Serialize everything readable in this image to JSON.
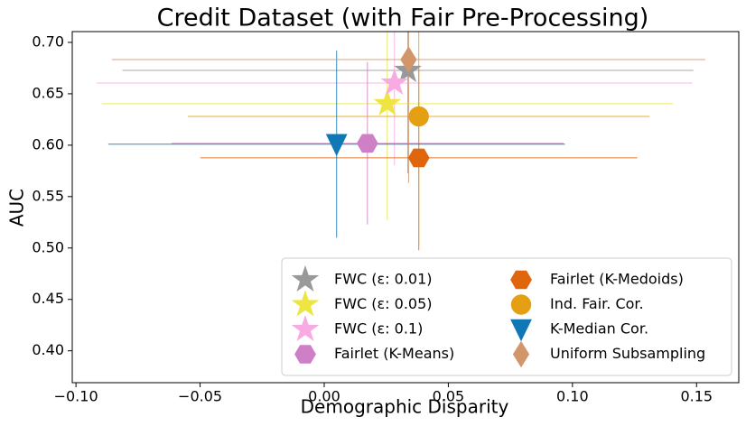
{
  "chart_data": {
    "type": "scatter",
    "title": "Credit Dataset (with Fair Pre-Processing)",
    "x_label": "Demographic Disparity",
    "y_label": "AUC",
    "xlim": [
      -0.1015,
      0.167
    ],
    "ylim": [
      0.369,
      0.7105
    ],
    "xticks": [
      {
        "value": -0.1,
        "label": "−0.10"
      },
      {
        "value": -0.05,
        "label": "−0.05"
      },
      {
        "value": 0,
        "label": "0.00"
      },
      {
        "value": 0.05,
        "label": "0.05"
      },
      {
        "value": 0.1,
        "label": "0.10"
      },
      {
        "value": 0.15,
        "label": "0.15"
      }
    ],
    "yticks": [
      {
        "value": 0.4,
        "label": "0.40"
      },
      0.45,
      {
        "value": 0.5,
        "label": "0.50"
      },
      0.55,
      {
        "value": 0.6,
        "label": "0.60"
      },
      0.65,
      {
        "value": 0.7,
        "label": "0.70"
      }
    ],
    "legend": "lower right",
    "series": [
      {
        "name": "FWC (ε: 0.01)",
        "color": "#999999",
        "marker": "star",
        "x": [
          0.0337
        ],
        "values": [
          0.6728
        ],
        "xerr": [
          0.115
        ],
        "yerr": [
          0.1
        ]
      },
      {
        "name": "FWC (ε: 0.05)",
        "color": "#eee543",
        "marker": "star",
        "x": [
          0.0254
        ],
        "values": [
          0.6404
        ],
        "xerr": [
          0.115
        ],
        "yerr": [
          0.113
        ]
      },
      {
        "name": "FWC (ε: 0.1)",
        "color": "#f8abe3",
        "marker": "star",
        "x": [
          0.0283
        ],
        "values": [
          0.6605
        ],
        "xerr": [
          0.12
        ],
        "yerr": [
          0.08
        ]
      },
      {
        "name": "Fairlet (K-Means)",
        "color": "#cf7fc5",
        "marker": "hexagon",
        "x": [
          0.0174
        ],
        "values": [
          0.6018
        ],
        "xerr": [
          0.079
        ],
        "yerr": [
          0.079
        ]
      },
      {
        "name": "Fairlet (K-Medoids)",
        "color": "#df660d",
        "marker": "hexagon",
        "x": [
          0.0381
        ],
        "values": [
          0.5877
        ],
        "xerr": [
          0.088
        ],
        "yerr": [
          0.09
        ]
      },
      {
        "name": "Ind. Fair. Cor.",
        "color": "#e4a012",
        "marker": "circle",
        "x": [
          0.0381
        ],
        "values": [
          0.628
        ],
        "xerr": [
          0.093
        ],
        "yerr": [
          0.125
        ]
      },
      {
        "name": "K-Median Cor.",
        "color": "#0f78b5",
        "marker": "triangle-down",
        "x": [
          0.005
        ],
        "values": [
          0.601
        ],
        "xerr": [
          0.092
        ],
        "yerr": [
          0.091
        ]
      },
      {
        "name": "Uniform Subsampling",
        "color": "#d1966a",
        "marker": "diamond",
        "x": [
          0.034
        ],
        "values": [
          0.6833
        ],
        "xerr": [
          0.1195
        ],
        "yerr": [
          0.12
        ]
      }
    ]
  }
}
